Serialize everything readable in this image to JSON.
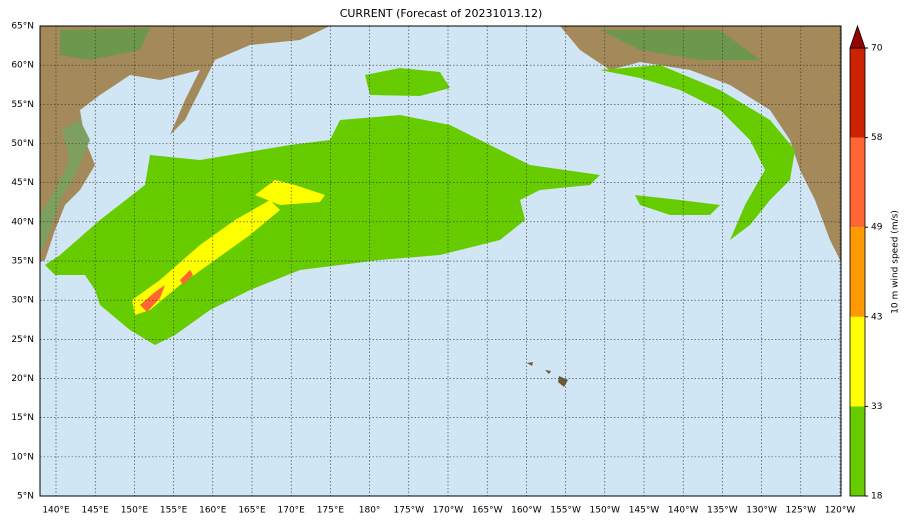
{
  "map": {
    "title": "CURRENT (Forecast of 20231013.12)",
    "lat_labels": [
      "65°N",
      "60°N",
      "55°N",
      "50°N",
      "45°N",
      "40°N",
      "35°N",
      "30°N",
      "25°N",
      "20°N",
      "15°N",
      "10°N",
      "5°N"
    ],
    "lon_labels": [
      "140°E",
      "145°E",
      "150°E",
      "155°E",
      "160°E",
      "165°E",
      "170°E",
      "175°E",
      "180°",
      "175°W",
      "170°W",
      "165°W",
      "160°W",
      "155°W",
      "150°W",
      "145°W",
      "140°W",
      "135°W",
      "130°W",
      "125°W",
      "120°W"
    ],
    "colorbar": {
      "label": "10 m wind speed (m/s)",
      "ticks": [
        18,
        33,
        43,
        49,
        58,
        70
      ],
      "colors": [
        "#66cc00",
        "#ffff00",
        "#ff9900",
        "#ff6633",
        "#cc2200"
      ],
      "extend_color": "#990000"
    }
  }
}
